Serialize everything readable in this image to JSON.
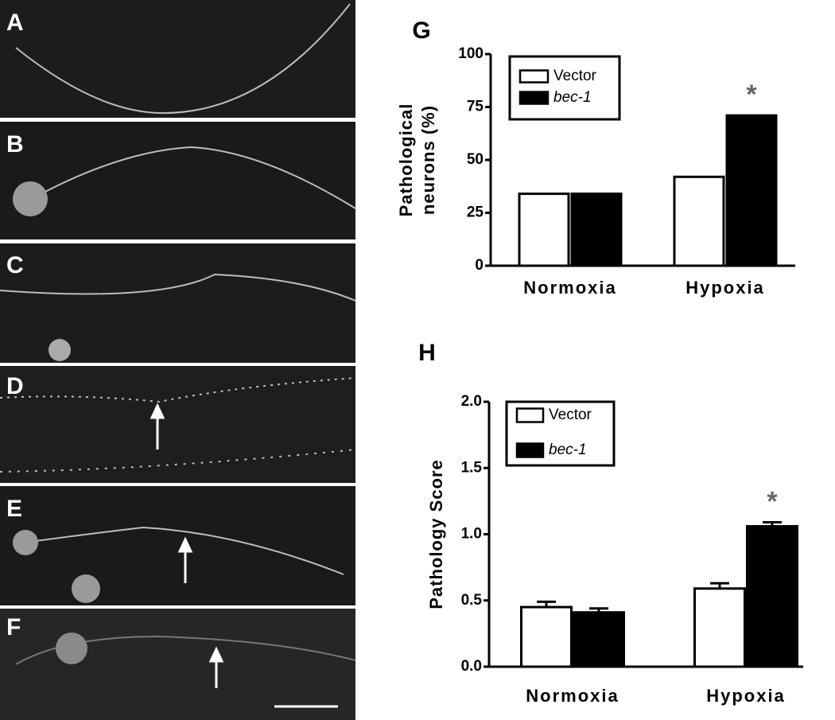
{
  "panels": {
    "labels": [
      "A",
      "B",
      "C",
      "D",
      "E",
      "F"
    ]
  },
  "chart_data": [
    {
      "type": "bar",
      "label": "G",
      "ylabel": [
        "Pathological",
        "neurons (%)"
      ],
      "categories": [
        "Normoxia",
        "Hypoxia"
      ],
      "series": [
        {
          "name": "Vector",
          "color": "#ffffff",
          "values": [
            34,
            42
          ]
        },
        {
          "name": "bec-1",
          "color": "#000000",
          "values": [
            34,
            71
          ]
        }
      ],
      "ylim": [
        0,
        100
      ],
      "yticks": [
        0,
        25,
        50,
        75,
        100
      ],
      "annotation": "*"
    },
    {
      "type": "bar",
      "label": "H",
      "ylabel": [
        "Pathology Score"
      ],
      "categories": [
        "Normoxia",
        "Hypoxia"
      ],
      "series": [
        {
          "name": "Vector",
          "color": "#ffffff",
          "values": [
            0.45,
            0.59
          ],
          "errors": [
            0.04,
            0.04
          ]
        },
        {
          "name": "bec-1",
          "color": "#000000",
          "values": [
            0.41,
            1.06
          ],
          "errors": [
            0.03,
            0.03
          ]
        }
      ],
      "ylim": [
        0,
        2
      ],
      "yticks": [
        {
          "value": 0,
          "label": "0.0"
        },
        {
          "value": 0.5,
          "label": "0.5"
        },
        {
          "value": 1,
          "label": "1.0"
        },
        {
          "value": 1.5,
          "label": "1.5"
        },
        {
          "value": 2,
          "label": "2.0"
        }
      ],
      "annotation": "*"
    }
  ]
}
